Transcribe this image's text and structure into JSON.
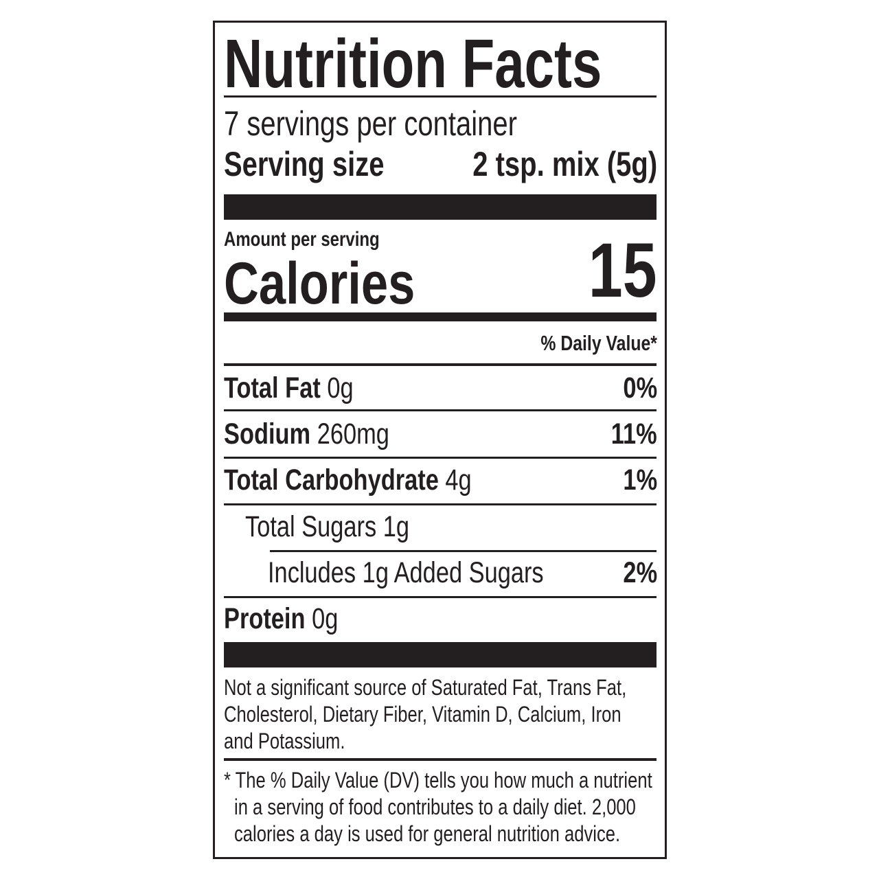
{
  "title": "Nutrition Facts",
  "servings_per_container": "7 servings per container",
  "serving_size": {
    "label": "Serving size",
    "value": "2 tsp. mix (5g)"
  },
  "amount_per_serving": "Amount per serving",
  "calories": {
    "label": "Calories",
    "value": "15"
  },
  "daily_value_header": "% Daily Value*",
  "nutrients": [
    {
      "name": "Total Fat",
      "amount": "0g",
      "dv": "0%"
    },
    {
      "name": "Sodium",
      "amount": "260mg",
      "dv": "11%"
    },
    {
      "name": "Total Carbohydrate",
      "amount": "4g",
      "dv": "1%"
    },
    {
      "name": "Total Sugars 1g",
      "amount": "",
      "dv": ""
    },
    {
      "name": "Includes 1g Added Sugars",
      "amount": "",
      "dv": "2%"
    },
    {
      "name": "Protein",
      "amount": "0g",
      "dv": ""
    }
  ],
  "not_significant": [
    "Not a significant source of Saturated Fat, Trans Fat,",
    "Cholesterol, Dietary Fiber, Vitamin D, Calcium, Iron",
    "and Potassium."
  ],
  "footnote": [
    "* The % Daily Value (DV) tells you how much a nutrient",
    "in a serving of food contributes to a daily diet. 2,000",
    "calories a day is used for general nutrition advice."
  ]
}
